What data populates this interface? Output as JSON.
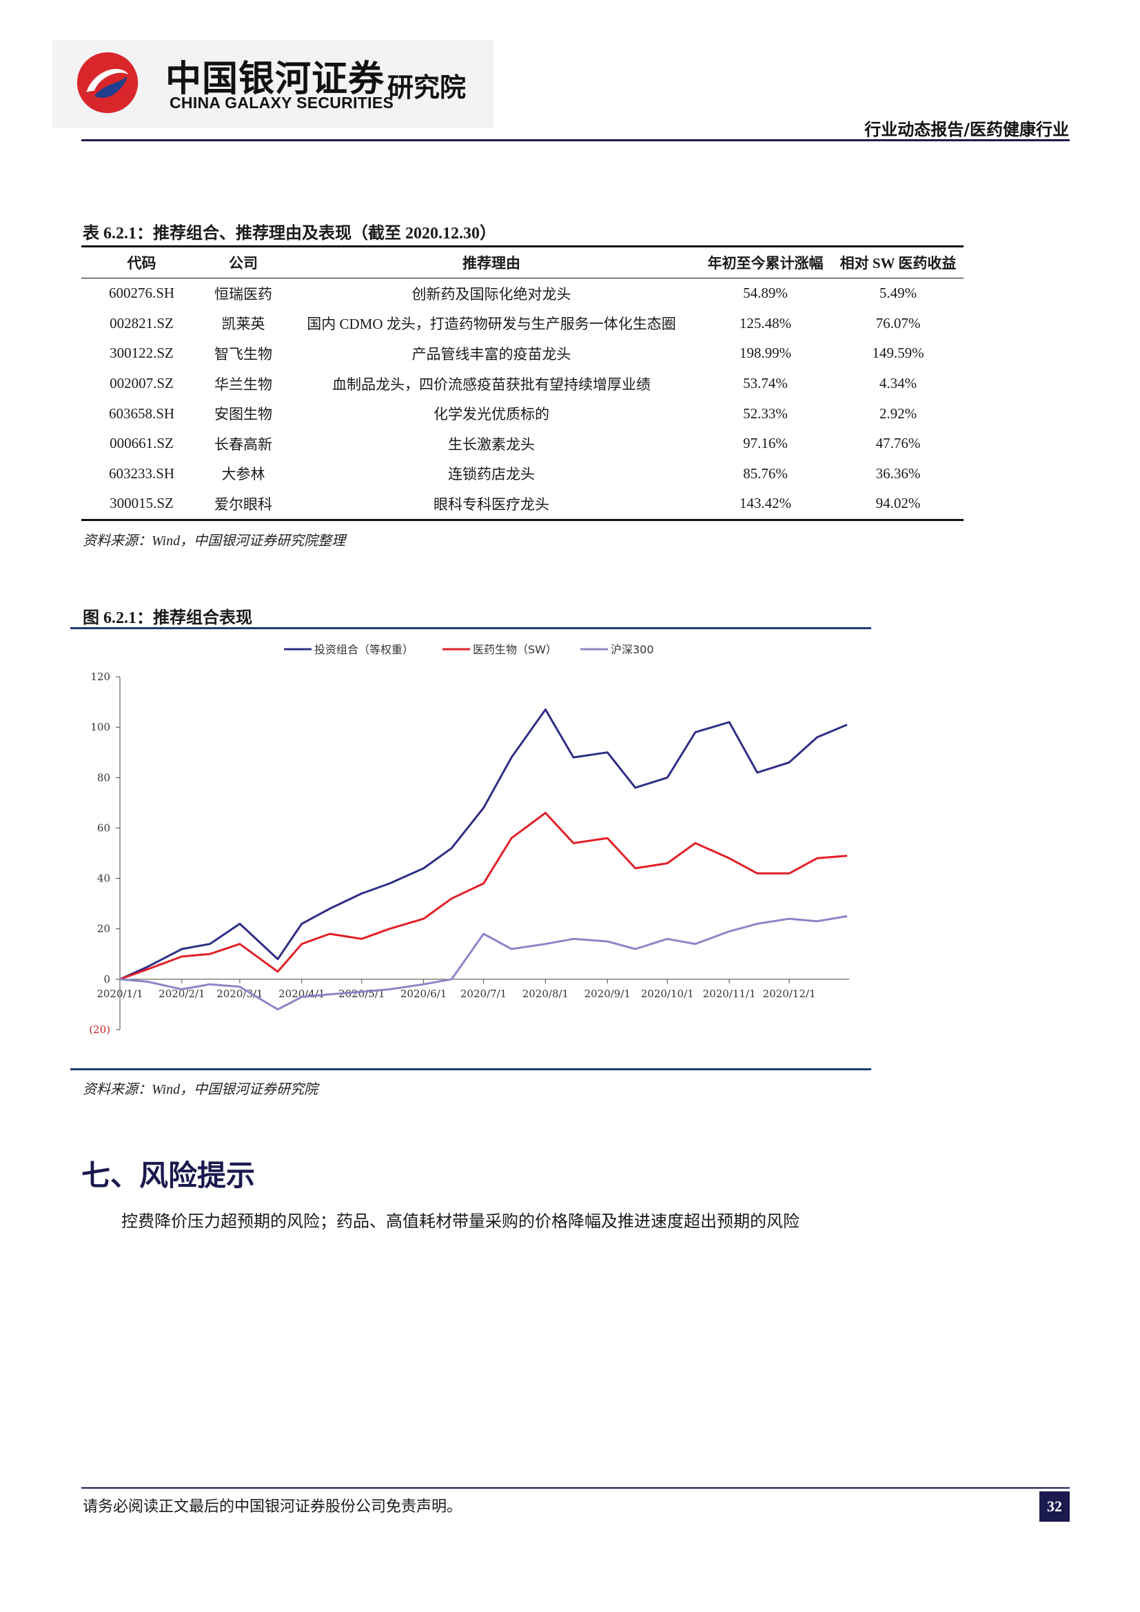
{
  "header": {
    "brand_cn": "中国银河证券",
    "brand_en": "CHINA GALAXY SECURITIES",
    "institute": "研究院",
    "report_type": "行业动态报告/医药健康行业"
  },
  "table": {
    "title": "表 6.2.1：推荐组合、推荐理由及表现（截至 2020.12.30）",
    "columns": [
      "代码",
      "公司",
      "推荐理由",
      "年初至今累计涨幅",
      "相对 SW 医药收益"
    ],
    "rows": [
      [
        "600276.SH",
        "恒瑞医药",
        "创新药及国际化绝对龙头",
        "54.89%",
        "5.49%"
      ],
      [
        "002821.SZ",
        "凯莱英",
        "国内 CDMO 龙头，打造药物研发与生产服务一体化生态圈",
        "125.48%",
        "76.07%"
      ],
      [
        "300122.SZ",
        "智飞生物",
        "产品管线丰富的疫苗龙头",
        "198.99%",
        "149.59%"
      ],
      [
        "002007.SZ",
        "华兰生物",
        "血制品龙头，四价流感疫苗获批有望持续增厚业绩",
        "53.74%",
        "4.34%"
      ],
      [
        "603658.SH",
        "安图生物",
        "化学发光优质标的",
        "52.33%",
        "2.92%"
      ],
      [
        "000661.SZ",
        "长春高新",
        "生长激素龙头",
        "97.16%",
        "47.76%"
      ],
      [
        "603233.SH",
        "大参林",
        "连锁药店龙头",
        "85.76%",
        "36.36%"
      ],
      [
        "300015.SZ",
        "爱尔眼科",
        "眼科专科医疗龙头",
        "143.42%",
        "94.02%"
      ]
    ],
    "source": "资料来源：Wind，中国银河证券研究院整理"
  },
  "chart": {
    "title": "图 6.2.1：推荐组合表现",
    "source": "资料来源：Wind，中国银河证券研究院"
  },
  "chart_data": {
    "type": "line",
    "title": "",
    "xlabel": "",
    "ylabel": "",
    "ylim": [
      -20,
      120
    ],
    "yticks": [
      -20,
      0,
      20,
      40,
      60,
      80,
      100,
      120
    ],
    "ytick_labels": [
      "(20)",
      "0",
      "20",
      "40",
      "60",
      "80",
      "100",
      "120"
    ],
    "xtick_labels": [
      "2020/1/1",
      "2020/2/1",
      "2020/3/1",
      "2020/4/1",
      "2020/5/1",
      "2020/6/1",
      "2020/7/1",
      "2020/8/1",
      "2020/9/1",
      "2020/10/1",
      "2020/11/1",
      "2020/12/1"
    ],
    "x_months": [
      "2020-01",
      "2020-02",
      "2020-03",
      "2020-04",
      "2020-05",
      "2020-06",
      "2020-07",
      "2020-08",
      "2020-09",
      "2020-10",
      "2020-11",
      "2020-12"
    ],
    "grid": false,
    "legend": "top-center",
    "series": [
      {
        "name": "投资组合（等权重）",
        "color": "#2e2e86",
        "x": [
          "2020-01-01",
          "2020-01-15",
          "2020-02-01",
          "2020-02-15",
          "2020-03-01",
          "2020-03-20",
          "2020-04-01",
          "2020-04-15",
          "2020-05-01",
          "2020-05-15",
          "2020-06-01",
          "2020-06-15",
          "2020-07-01",
          "2020-07-15",
          "2020-08-01",
          "2020-08-15",
          "2020-09-01",
          "2020-09-15",
          "2020-10-01",
          "2020-10-15",
          "2020-11-01",
          "2020-11-15",
          "2020-12-01",
          "2020-12-15",
          "2020-12-30"
        ],
        "values": [
          0,
          5,
          12,
          14,
          22,
          8,
          22,
          28,
          34,
          38,
          44,
          52,
          68,
          88,
          107,
          88,
          90,
          76,
          80,
          98,
          102,
          82,
          86,
          96,
          101
        ]
      },
      {
        "name": "医药生物（SW）",
        "color": "#e21f26",
        "x": [
          "2020-01-01",
          "2020-01-15",
          "2020-02-01",
          "2020-02-15",
          "2020-03-01",
          "2020-03-20",
          "2020-04-01",
          "2020-04-15",
          "2020-05-01",
          "2020-05-15",
          "2020-06-01",
          "2020-06-15",
          "2020-07-01",
          "2020-07-15",
          "2020-08-01",
          "2020-08-15",
          "2020-09-01",
          "2020-09-15",
          "2020-10-01",
          "2020-10-15",
          "2020-11-01",
          "2020-11-15",
          "2020-12-01",
          "2020-12-15",
          "2020-12-30"
        ],
        "values": [
          0,
          4,
          9,
          10,
          14,
          3,
          14,
          18,
          16,
          20,
          24,
          32,
          38,
          56,
          66,
          54,
          56,
          44,
          46,
          54,
          48,
          42,
          42,
          48,
          49
        ]
      },
      {
        "name": "沪深300",
        "color": "#8a86c8",
        "x": [
          "2020-01-01",
          "2020-01-15",
          "2020-02-01",
          "2020-02-15",
          "2020-03-01",
          "2020-03-20",
          "2020-04-01",
          "2020-04-15",
          "2020-05-01",
          "2020-05-15",
          "2020-06-01",
          "2020-06-15",
          "2020-07-01",
          "2020-07-15",
          "2020-08-01",
          "2020-08-15",
          "2020-09-01",
          "2020-09-15",
          "2020-10-01",
          "2020-10-15",
          "2020-11-01",
          "2020-11-15",
          "2020-12-01",
          "2020-12-15",
          "2020-12-30"
        ],
        "values": [
          0,
          -1,
          -4,
          -2,
          -3,
          -12,
          -7,
          -6,
          -5,
          -4,
          -2,
          0,
          18,
          12,
          14,
          16,
          15,
          12,
          16,
          14,
          19,
          22,
          24,
          23,
          25
        ]
      }
    ]
  },
  "section": {
    "heading": "七、风险提示",
    "text": "控费降价压力超预期的风险；药品、高值耗材带量采购的价格降幅及推进速度超出预期的风险"
  },
  "footer": {
    "disclaimer": "请务必阅读正文最后的中国银河证券股份公司免责声明。",
    "page_number": "32"
  }
}
